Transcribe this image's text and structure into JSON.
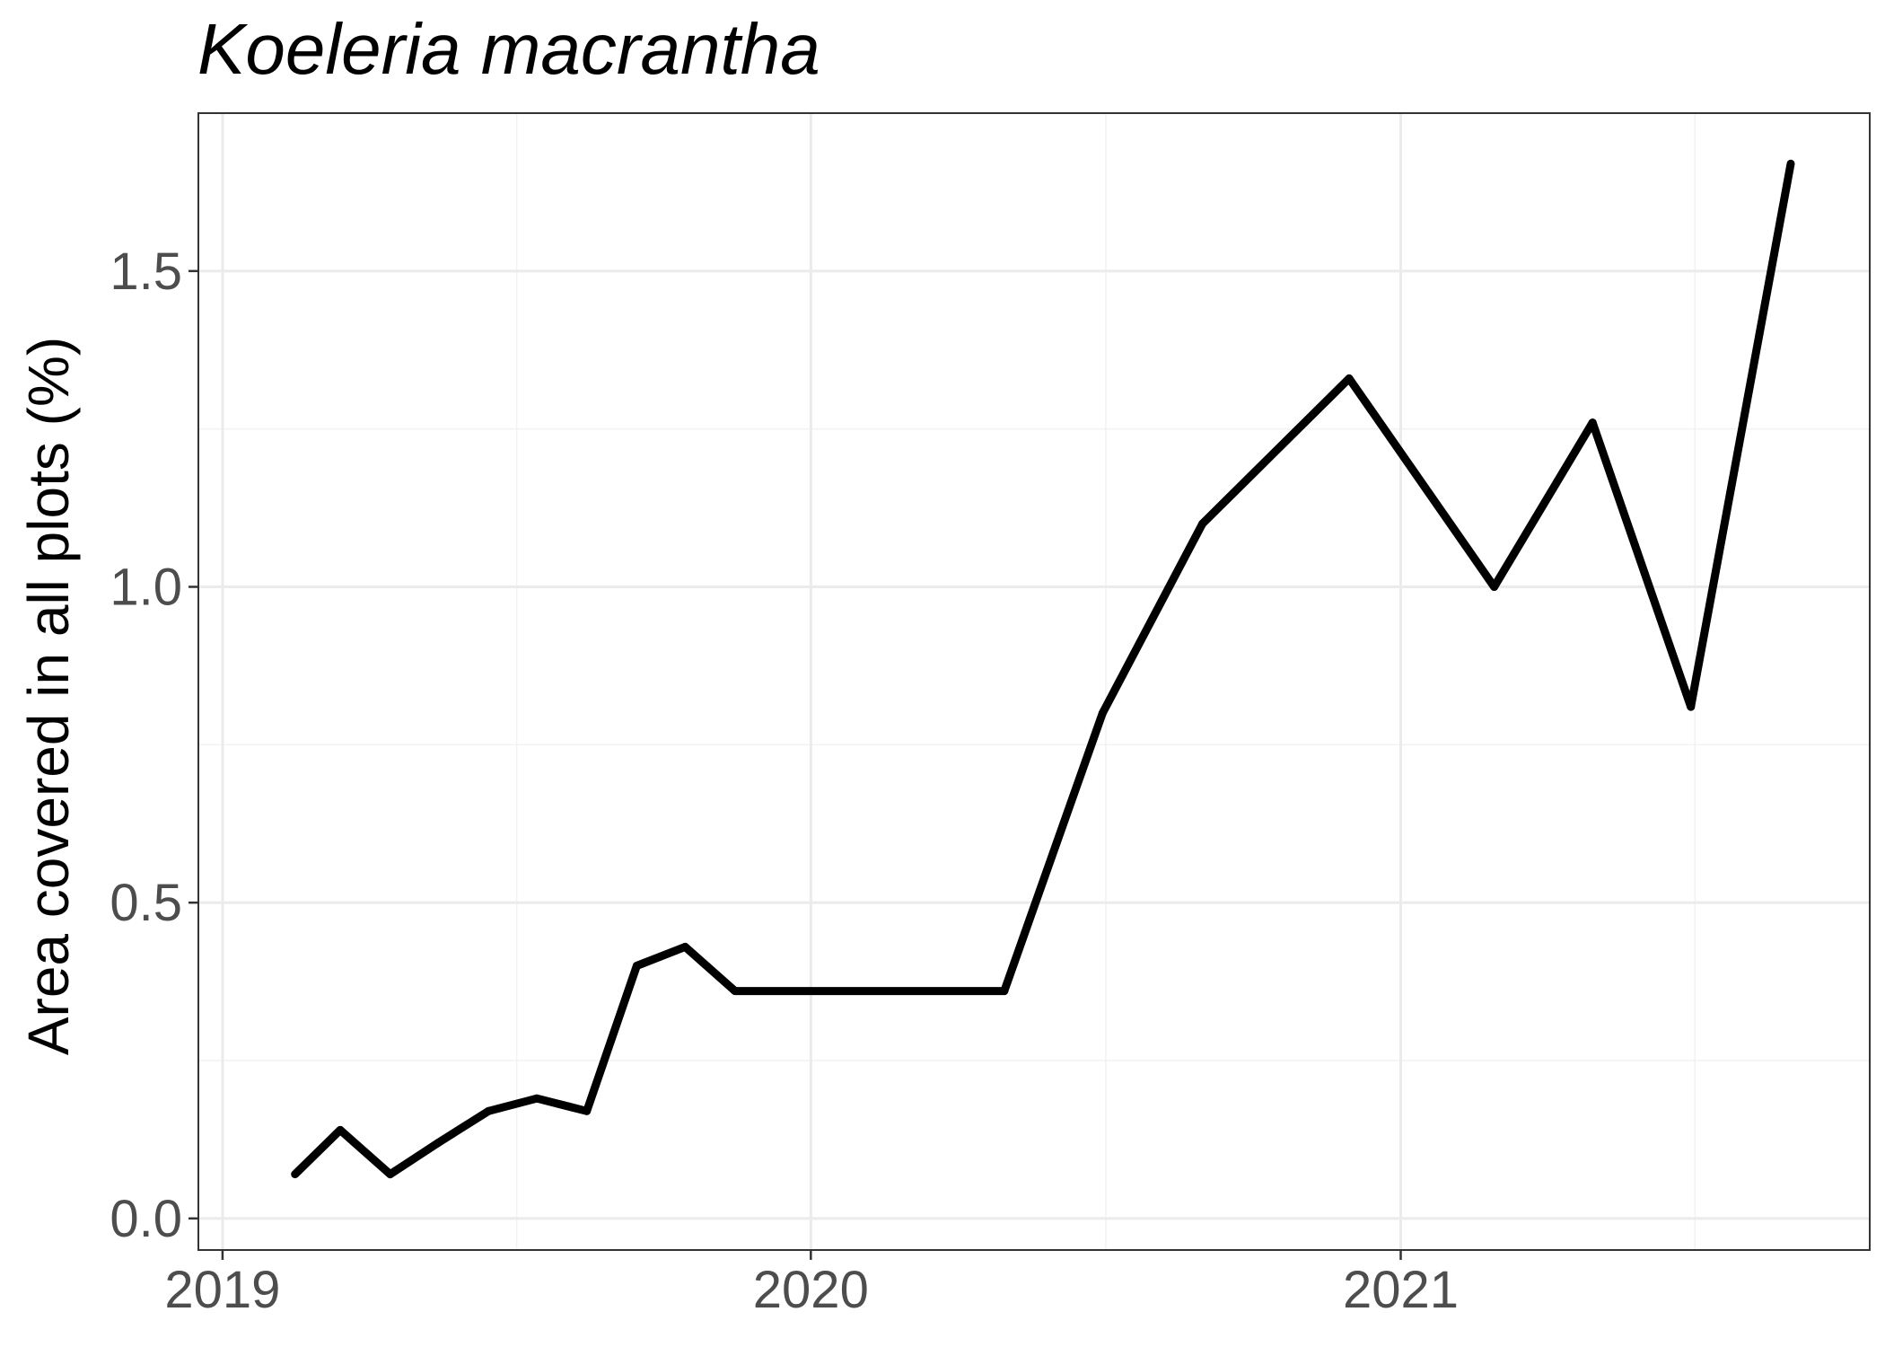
{
  "chart_data": {
    "type": "line",
    "title": "Koeleria macrantha",
    "xlabel": "",
    "ylabel": "Area covered in all plots (%)",
    "x_axis_type": "date",
    "xlim": [
      "2018-12-17",
      "2021-10-19"
    ],
    "ylim": [
      -0.05,
      1.75
    ],
    "x_ticks": [
      {
        "date": "2019-01-01",
        "label": "2019"
      },
      {
        "date": "2020-01-01",
        "label": "2020"
      },
      {
        "date": "2021-01-01",
        "label": "2021"
      }
    ],
    "y_ticks": [
      {
        "value": 0.0,
        "label": "0.0"
      },
      {
        "value": 0.5,
        "label": "0.5"
      },
      {
        "value": 1.0,
        "label": "1.0"
      },
      {
        "value": 1.5,
        "label": "1.5"
      }
    ],
    "grid": true,
    "line_color": "#000000",
    "series": [
      {
        "x": [
          "2019-02-15",
          "2019-03-15",
          "2019-04-15",
          "2019-05-15",
          "2019-06-15",
          "2019-07-15",
          "2019-08-15",
          "2019-09-15",
          "2019-10-15",
          "2019-11-15",
          "2020-04-30",
          "2020-06-30",
          "2020-08-31",
          "2020-11-30",
          "2021-02-28",
          "2021-04-30",
          "2021-06-30",
          "2021-08-31"
        ],
        "y": [
          0.07,
          0.14,
          0.07,
          0.12,
          0.17,
          0.19,
          0.17,
          0.4,
          0.43,
          0.36,
          0.36,
          0.8,
          1.1,
          1.33,
          1.0,
          1.26,
          0.81,
          1.67
        ]
      }
    ]
  }
}
